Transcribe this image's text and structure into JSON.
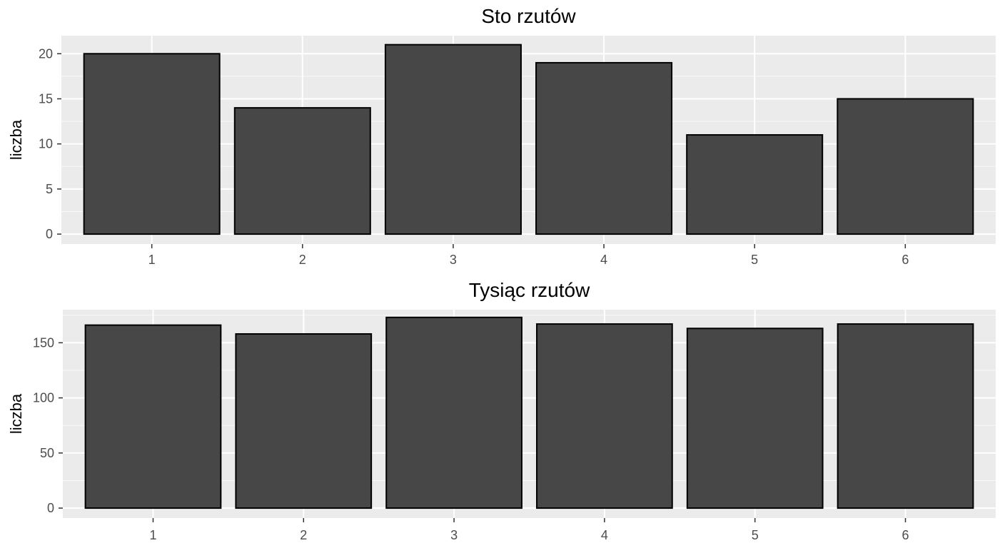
{
  "chart_data": [
    {
      "type": "bar",
      "title": "Sto rzutów",
      "xlabel": "",
      "ylabel": "liczba",
      "categories": [
        "1",
        "2",
        "3",
        "4",
        "5",
        "6"
      ],
      "values": [
        20,
        14,
        21,
        19,
        11,
        15
      ],
      "ylim": [
        0,
        22
      ],
      "yticks": [
        0,
        5,
        10,
        15,
        20
      ],
      "grid": true,
      "panel_color": "#ebebeb",
      "bar_fill": "#474747",
      "bar_stroke": "#000000"
    },
    {
      "type": "bar",
      "title": "Tysiąc rzutów",
      "xlabel": "",
      "ylabel": "liczba",
      "categories": [
        "1",
        "2",
        "3",
        "4",
        "5",
        "6"
      ],
      "values": [
        166,
        158,
        173,
        167,
        163,
        167
      ],
      "ylim": [
        0,
        180
      ],
      "yticks": [
        0,
        50,
        100,
        150
      ],
      "grid": true,
      "panel_color": "#ebebeb",
      "bar_fill": "#474747",
      "bar_stroke": "#000000"
    }
  ]
}
